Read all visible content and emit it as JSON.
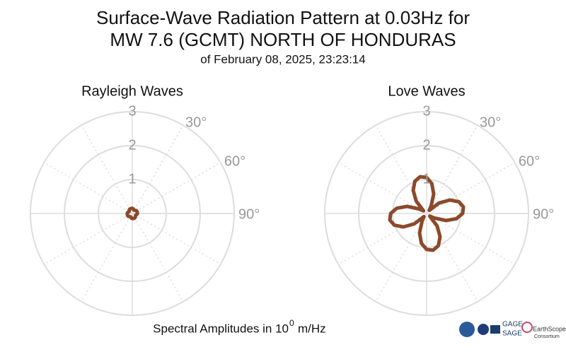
{
  "header": {
    "title": [
      "Surface-Wave Radiation Pattern at 0.03Hz for",
      "MW 7.6 (GCMT) NORTH OF HONDURAS"
    ],
    "subtitle": "of February 08, 2025, 23:23:14"
  },
  "caption": {
    "text": "Spectral Amplitudes in 10",
    "superscript": "0",
    "unit": "m/Hz"
  },
  "logos": [
    "GAGE",
    "SAGE",
    "EarthScope",
    "Consortium"
  ],
  "chart_data": [
    {
      "type": "polar",
      "title": "Rayleigh Waves",
      "color": "#8b4a2b",
      "theta": [
        0,
        10,
        20,
        30,
        40,
        50,
        60,
        70,
        80,
        90,
        100,
        110,
        120,
        130,
        140,
        150,
        160,
        170,
        180,
        190,
        200,
        210,
        220,
        230,
        240,
        250,
        260,
        270,
        280,
        290,
        300,
        310,
        320,
        330,
        340,
        350
      ],
      "values": [
        0.15,
        0.14,
        0.12,
        0.11,
        0.12,
        0.14,
        0.15,
        0.15,
        0.15,
        0.15,
        0.14,
        0.12,
        0.11,
        0.12,
        0.14,
        0.15,
        0.15,
        0.15,
        0.15,
        0.14,
        0.12,
        0.11,
        0.12,
        0.14,
        0.15,
        0.15,
        0.15,
        0.15,
        0.14,
        0.12,
        0.11,
        0.12,
        0.14,
        0.15,
        0.15,
        0.15
      ],
      "rlim": [
        0,
        3
      ],
      "rticks": [
        1,
        2,
        3
      ],
      "thetaticks": [
        {
          "value": 30,
          "label": "30°"
        },
        {
          "value": 60,
          "label": "60°"
        },
        {
          "value": 90,
          "label": "90°"
        }
      ]
    },
    {
      "type": "polar",
      "title": "Love Waves",
      "color": "#8b4a2b",
      "theta": [
        0,
        10,
        20,
        30,
        40,
        50,
        60,
        70,
        80,
        90,
        100,
        110,
        120,
        130,
        140,
        150,
        160,
        170,
        180,
        190,
        200,
        210,
        220,
        230,
        240,
        250,
        260,
        270,
        280,
        290,
        300,
        310,
        320,
        330,
        340,
        350
      ],
      "values": [
        1.06,
        0.89,
        0.61,
        0.27,
        0.12,
        0.48,
        0.79,
        1.01,
        1.1,
        1.06,
        0.89,
        0.61,
        0.27,
        0.12,
        0.48,
        0.79,
        1.01,
        1.1,
        1.06,
        0.89,
        0.61,
        0.27,
        0.12,
        0.48,
        0.79,
        1.01,
        1.1,
        1.06,
        0.89,
        0.61,
        0.27,
        0.12,
        0.48,
        0.79,
        1.01,
        1.1
      ],
      "rlim": [
        0,
        3
      ],
      "rticks": [
        1,
        2,
        3
      ],
      "thetaticks": [
        {
          "value": 30,
          "label": "30°"
        },
        {
          "value": 60,
          "label": "60°"
        },
        {
          "value": 90,
          "label": "90°"
        }
      ]
    }
  ]
}
